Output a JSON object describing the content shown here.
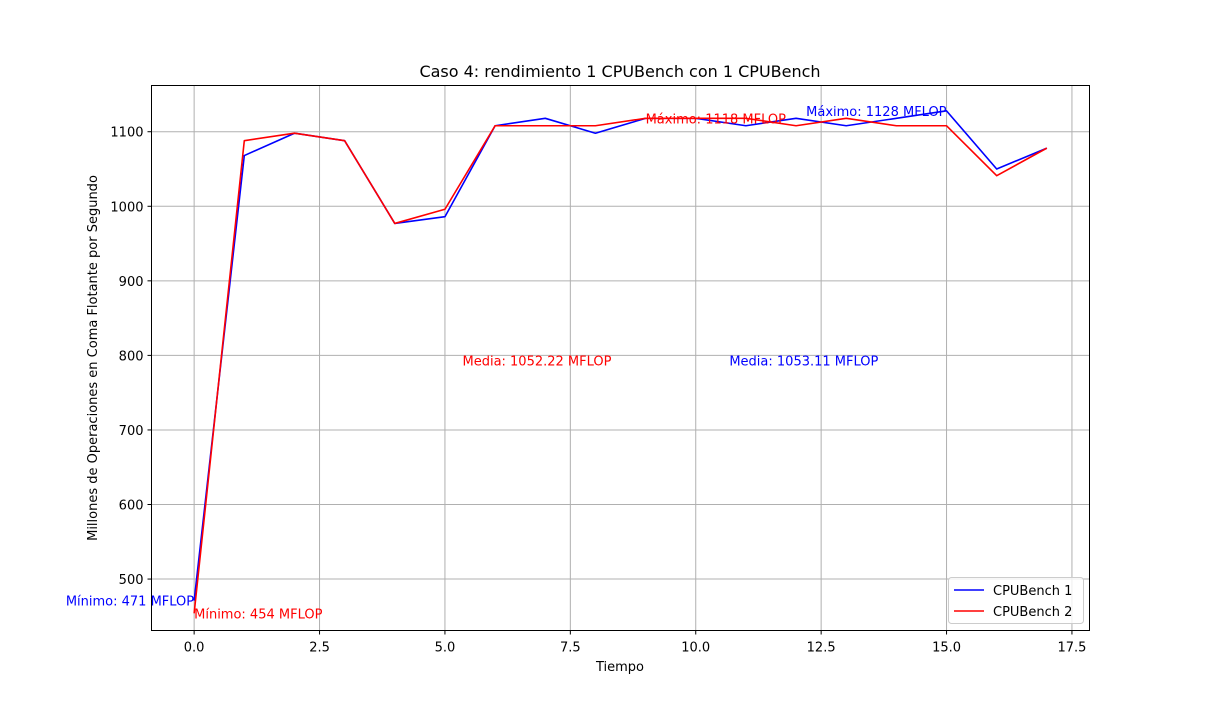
{
  "chart_data": {
    "type": "line",
    "title": "Caso 4: rendimiento 1 CPUBench con 1 CPUBench",
    "xlabel": "Tiempo",
    "ylabel": "Millones de Operaciones en Coma Flotante por Segundo",
    "xlim": [
      -0.85,
      17.85
    ],
    "ylim": [
      431,
      1162
    ],
    "xticks": [
      0.0,
      2.5,
      5.0,
      7.5,
      10.0,
      12.5,
      15.0,
      17.5
    ],
    "xtick_labels": [
      "0.0",
      "2.5",
      "5.0",
      "7.5",
      "10.0",
      "12.5",
      "15.0",
      "17.5"
    ],
    "yticks": [
      500,
      600,
      700,
      800,
      900,
      1000,
      1100
    ],
    "ytick_labels": [
      "500",
      "600",
      "700",
      "800",
      "900",
      "1000",
      "1100"
    ],
    "grid": true,
    "legend_position": "lower right",
    "x": [
      0,
      1,
      2,
      3,
      4,
      5,
      6,
      7,
      8,
      9,
      10,
      11,
      12,
      13,
      14,
      15,
      16,
      17
    ],
    "series": [
      {
        "name": "CPUBench 1",
        "color": "#0000ff",
        "values": [
          471,
          1068,
          1098,
          1088,
          977,
          986,
          1108,
          1118,
          1098,
          1118,
          1118,
          1108,
          1118,
          1108,
          1118,
          1128,
          1050,
          1078
        ]
      },
      {
        "name": "CPUBench 2",
        "color": "#ff0000",
        "values": [
          454,
          1088,
          1098,
          1088,
          977,
          996,
          1108,
          1108,
          1108,
          1118,
          1118,
          1118,
          1108,
          1118,
          1108,
          1108,
          1041,
          1078
        ]
      }
    ],
    "annotations": [
      {
        "text": "Mínimo: 471 MFLOP",
        "x": 0,
        "y": 471,
        "color": "#0000ff",
        "anchor": "end"
      },
      {
        "text": "Mínimo: 454 MFLOP",
        "x": 0,
        "y": 454,
        "color": "#ff0000",
        "anchor": "start"
      },
      {
        "text": "Máximo: 1128 MFLOP",
        "x": 15,
        "y": 1128,
        "color": "#0000ff",
        "anchor": "end"
      },
      {
        "text": "Máximo: 1118 MFLOP",
        "x": 9,
        "y": 1118,
        "color": "#ff0000",
        "anchor": "start"
      },
      {
        "text": "Media: 1053.11 MFLOP",
        "x": 10.67,
        "y": 793,
        "color": "#0000ff",
        "anchor": "start"
      },
      {
        "text": "Media: 1052.22 MFLOP",
        "x": 5.35,
        "y": 793,
        "color": "#ff0000",
        "anchor": "start"
      }
    ]
  }
}
